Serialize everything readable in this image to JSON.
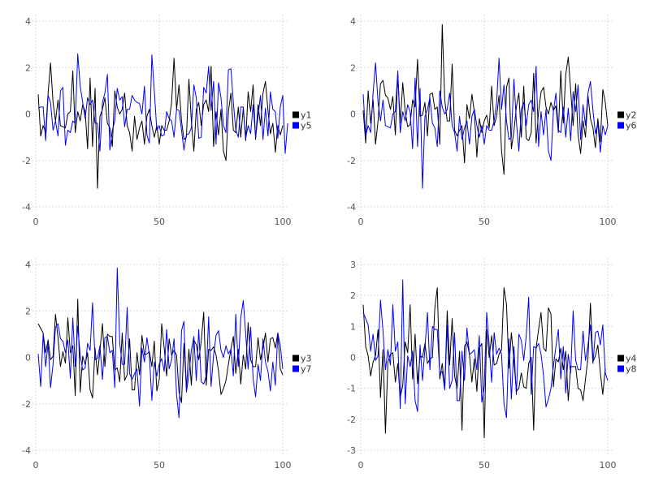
{
  "chart_data": [
    {
      "type": "line",
      "xlim": [
        0,
        100
      ],
      "ylim": [
        -4,
        4
      ],
      "xticks": [
        "0",
        "50",
        "100"
      ],
      "xtick_values": [
        0,
        50,
        100
      ],
      "yticks": [
        "-4",
        "-2",
        "0",
        "2",
        "4"
      ],
      "ytick_values": [
        -4,
        -2,
        0,
        2,
        4
      ],
      "grid": true,
      "legend": "right",
      "series": [
        {
          "name": "y1",
          "color": "#000000",
          "values": [
            0.85,
            -0.95,
            -0.5,
            -0.8,
            0.9,
            2.2,
            0.5,
            -0.3,
            0.6,
            -0.5,
            -0.55,
            -0.6,
            0,
            0.1,
            1.85,
            -0.8,
            0.1,
            -0.3,
            0.4,
            0.1,
            -1.5,
            1.55,
            -1.4,
            1.1,
            -3.2,
            -0.1,
            0.2,
            0.7,
            -0.4,
            -0.6,
            -1.4,
            1.0,
            0.3,
            0,
            0.2,
            0.9,
            -0.5,
            -0.8,
            -1.6,
            -0.1,
            -1.1,
            -0.6,
            -0.3,
            -1.3,
            -0.1,
            0.2,
            -0.5,
            -1.0,
            -0.5,
            -1.3,
            -0.5,
            -0.7,
            -0.7,
            -0.3,
            0.5,
            2.4,
            0.2,
            1.25,
            -0.3,
            -1.1,
            -1.0,
            1.5,
            -0.3,
            -1.6,
            0.2,
            0.5,
            -0.5,
            0.4,
            0.6,
            0.1,
            2.05,
            -1.4,
            0.1,
            -0.9,
            0.2,
            -1.6,
            -2.0,
            0.1,
            0.9,
            -0.7,
            -0.8,
            0.3,
            -1.0,
            0.25,
            -1.15,
            0.95,
            0.1,
            1.25,
            -1.1,
            0.4,
            -0.5,
            0.9,
            1.4,
            0.15,
            -0.85,
            -0.4,
            -1.65,
            -0.5,
            -0.9,
            -0.5
          ]
        },
        {
          "name": "y5",
          "color": "#0000ff",
          "values": [
            0.25,
            0.3,
            0.3,
            -1.15,
            0.8,
            0.5,
            -0.7,
            -0.3,
            -0.95,
            1.0,
            1.15,
            -1.35,
            -0.7,
            -0.8,
            -0.3,
            -0.4,
            2.6,
            1.2,
            0.5,
            -0.2,
            0.7,
            0.4,
            0.6,
            -0.4,
            -0.4,
            -1.6,
            0.5,
            0.9,
            1.7,
            -1.55,
            -0.7,
            -0.3,
            1.1,
            0.6,
            0.75,
            -0.55,
            0.2,
            0.2,
            0.8,
            0.6,
            0.5,
            0.45,
            0.0,
            1.2,
            -0.9,
            -1.25,
            2.55,
            1.0,
            -0.7,
            -0.5,
            -0.95,
            -0.9,
            0.1,
            -0.2,
            -0.3,
            -1.0,
            0.2,
            0.15,
            -0.7,
            -1.55,
            -0.9,
            -0.85,
            -0.6,
            1.25,
            0.7,
            -1.05,
            -1.0,
            1.15,
            0.9,
            2.05,
            0.15,
            1.4,
            -1.3,
            1.35,
            0.7,
            -0.5,
            -0.8,
            1.9,
            1.95,
            0.5,
            -0.7,
            -1.0,
            0.3,
            0.3,
            -1.05,
            -0.5,
            -0.85,
            0.4,
            -1.0,
            -0.1,
            0.8,
            -1.1,
            0.25,
            -0.95,
            0.95,
            0.2,
            0.1,
            -1.05,
            0.3,
            0.8,
            -1.7,
            -0.4
          ]
        }
      ]
    },
    {
      "type": "line",
      "xlim": [
        0,
        100
      ],
      "ylim": [
        -4,
        4
      ],
      "xticks": [
        "0",
        "50",
        "100"
      ],
      "xtick_values": [
        0,
        50,
        100
      ],
      "yticks": [
        "-4",
        "-2",
        "0",
        "2",
        "4"
      ],
      "ytick_values": [
        -4,
        -2,
        0,
        2,
        4
      ],
      "grid": true,
      "legend": "right",
      "series": [
        {
          "name": "y2",
          "color": "#000000",
          "values": [
            0.15,
            -1.25,
            1.0,
            -0.4,
            0.6,
            -1.3,
            -0.3,
            1.3,
            1.45,
            0.8,
            0.7,
            0.2,
            0.75,
            -0.9,
            1.7,
            -0.4,
            1.35,
            0.1,
            -0.55,
            -0.45,
            0.6,
            0.3,
            2.35,
            -0.1,
            -0.05,
            0.5,
            -0.95,
            0.85,
            0.9,
            0.2,
            0.3,
            -1.3,
            3.85,
            0.6,
            -0.3,
            -0.3,
            2.15,
            -0.7,
            -0.95,
            -0.7,
            -0.5,
            -2.1,
            0.4,
            -0.2,
            0.85,
            0.1,
            -1.85,
            -0.2,
            -0.8,
            -0.3,
            -0.05,
            -0.6,
            1.2,
            -0.5,
            -0.1,
            0.8,
            -1.6,
            -2.6,
            1.15,
            1.55,
            -1.5,
            -0.75,
            0.3,
            0.9,
            -1.0,
            1.2,
            -1.05,
            -1.15,
            -0.8,
            1.75,
            -1.25,
            0.1,
            0.95,
            1.15,
            0.3,
            0.0,
            0.5,
            0.15,
            0.35,
            -0.8,
            1.85,
            -0.4,
            1.7,
            2.45,
            1.0,
            -0.5,
            1.3,
            -0.9,
            -1.7,
            -0.3,
            -1.0,
            0.8,
            -0.2,
            -0.6,
            -1.45,
            -0.2,
            -1.2,
            1.05,
            0.5,
            -0.5
          ]
        },
        {
          "name": "y6",
          "color": "#0000ff",
          "values": [
            0.85,
            -0.95,
            -0.5,
            -0.8,
            0.9,
            2.2,
            0.5,
            -0.3,
            0.6,
            -0.5,
            -0.55,
            -0.6,
            0,
            0.1,
            1.85,
            -0.8,
            0.1,
            -0.3,
            0.4,
            0.1,
            -1.5,
            1.55,
            -1.4,
            1.1,
            -3.2,
            -0.1,
            0.2,
            0.7,
            -0.4,
            -0.6,
            -1.4,
            1.0,
            0.3,
            0,
            0.2,
            0.9,
            -0.5,
            -0.8,
            -1.6,
            -0.1,
            -1.1,
            -0.6,
            -0.3,
            -1.3,
            -0.1,
            0.2,
            -0.5,
            -1.0,
            -0.5,
            -1.3,
            -0.5,
            -0.7,
            -0.7,
            -0.3,
            0.5,
            2.4,
            0.2,
            1.25,
            -0.3,
            -1.1,
            -1.0,
            1.5,
            -0.3,
            -1.6,
            0.2,
            0.5,
            -0.5,
            0.4,
            0.6,
            0.1,
            2.05,
            -1.4,
            0.1,
            -0.9,
            0.2,
            -1.6,
            -2.0,
            0.1,
            0.9,
            -0.7,
            -0.8,
            0.3,
            -1.0,
            0.25,
            -1.15,
            0.95,
            0.1,
            1.25,
            -1.1,
            0.4,
            -0.5,
            0.9,
            1.4,
            0.15,
            -0.85,
            -0.4,
            -1.65,
            -0.5,
            -0.9,
            -0.5
          ]
        }
      ]
    },
    {
      "type": "line",
      "xlim": [
        0,
        100
      ],
      "ylim": [
        -4,
        4
      ],
      "xticks": [
        "0",
        "50",
        "100"
      ],
      "xtick_values": [
        0,
        50,
        100
      ],
      "yticks": [
        "-4",
        "-2",
        "0",
        "2",
        "4"
      ],
      "ytick_values": [
        -4,
        -2,
        0,
        2,
        4
      ],
      "grid": true,
      "legend": "right",
      "series": [
        {
          "name": "y3",
          "color": "#000000",
          "values": [
            1.45,
            1.25,
            1.05,
            0.2,
            0.75,
            -0.1,
            0.05,
            1.85,
            0.85,
            -0.4,
            0.25,
            -0.25,
            1.7,
            0.2,
            0.5,
            -1.65,
            2.5,
            -1.5,
            0.05,
            -0.3,
            0.2,
            -1.4,
            -1.75,
            0.4,
            -0.75,
            0.3,
            1.45,
            -0.4,
            1.0,
            0.9,
            0.9,
            -0.55,
            -0.45,
            -1.05,
            1.05,
            -1.0,
            -0.75,
            0.8,
            -1.4,
            -1.4,
            0.2,
            -0.75,
            0.95,
            0.1,
            0.15,
            0.25,
            -0.4,
            0.7,
            -1.45,
            -0.95,
            1.45,
            0.4,
            -0.8,
            0.8,
            0.1,
            0.3,
            0.1,
            -1.5,
            -1.95,
            0.6,
            -1.35,
            0.35,
            -1.2,
            0.75,
            0.55,
            -0.1,
            0.7,
            1.95,
            -1.2,
            0.35,
            0.3,
            0.45,
            0.1,
            -0.6,
            -1.6,
            -1.35,
            -1.0,
            -0.3,
            0.35,
            0.9,
            -0.7,
            0.35,
            -1.15,
            0.1,
            -0.5,
            1.5,
            -0.1,
            -0.4,
            -0.4,
            0.85,
            -0.1,
            0.4,
            1.05,
            -0.2,
            0.8,
            0.85,
            0.4,
            1.05,
            -0.5,
            -0.75
          ]
        },
        {
          "name": "y7",
          "color": "#0000ff",
          "values": [
            0.15,
            -1.25,
            1.0,
            -0.4,
            0.6,
            -1.3,
            -0.3,
            1.3,
            1.45,
            0.8,
            0.7,
            0.2,
            0.75,
            -0.9,
            1.7,
            -0.4,
            1.35,
            0.1,
            -0.55,
            -0.45,
            0.6,
            0.3,
            2.35,
            -0.1,
            -0.05,
            0.5,
            -0.95,
            0.85,
            0.9,
            0.2,
            0.3,
            -1.3,
            3.85,
            0.6,
            -0.3,
            -0.3,
            2.15,
            -0.7,
            -0.95,
            -0.7,
            -0.5,
            -2.1,
            0.4,
            -0.2,
            0.85,
            0.1,
            -1.85,
            -0.2,
            -0.8,
            -0.3,
            -0.05,
            -0.6,
            1.2,
            -0.5,
            -0.1,
            0.8,
            -1.6,
            -2.6,
            1.15,
            1.55,
            -1.5,
            -0.75,
            0.3,
            0.9,
            -1.0,
            1.2,
            -1.05,
            -1.15,
            -0.8,
            1.75,
            -1.25,
            0.1,
            0.95,
            1.15,
            0.3,
            0.0,
            0.5,
            0.15,
            0.35,
            -0.8,
            1.85,
            -0.4,
            1.7,
            2.45,
            1.0,
            -0.5,
            1.3,
            -0.9,
            -1.7,
            -0.3,
            -1.0,
            0.8,
            -0.2,
            -0.6,
            -1.45,
            -0.2,
            -1.2,
            1.05,
            0.5,
            -0.5
          ]
        }
      ]
    },
    {
      "type": "line",
      "xlim": [
        0,
        100
      ],
      "ylim": [
        -3,
        3
      ],
      "xticks": [
        "0",
        "50",
        "100"
      ],
      "xtick_values": [
        0,
        50,
        100
      ],
      "yticks": [
        "-3",
        "-2",
        "-1",
        "0",
        "1",
        "2",
        "3"
      ],
      "ytick_values": [
        -3,
        -2,
        -1,
        0,
        1,
        2,
        3
      ],
      "grid": true,
      "legend": "right",
      "series": [
        {
          "name": "y4",
          "color": "#000000",
          "values": [
            1.7,
            0.35,
            0.05,
            -0.6,
            -0.15,
            0.05,
            0.9,
            -1.3,
            0.25,
            -2.45,
            -0.15,
            0.1,
            0.15,
            -0.8,
            -0.2,
            -1.3,
            -0.9,
            0.5,
            0.15,
            1.7,
            -0.7,
            0.75,
            -0.85,
            0.05,
            0.0,
            0.45,
            -0.2,
            -0.05,
            0.0,
            1.6,
            2.25,
            -0.7,
            -0.2,
            -1.0,
            1.5,
            -0.25,
            1.25,
            -0.6,
            -1.0,
            0.2,
            -2.35,
            0.35,
            0.5,
            0.1,
            -0.8,
            -0.05,
            -1.1,
            0.3,
            0.45,
            -2.6,
            0.9,
            0.0,
            0.7,
            -0.25,
            -0.2,
            0.1,
            0.25,
            2.25,
            1.7,
            -0.35,
            0.8,
            -0.1,
            -1.1,
            -1.0,
            -0.5,
            -0.95,
            -1.0,
            -0.2,
            0.0,
            -2.35,
            0.3,
            0.9,
            1.45,
            0.3,
            0.2,
            1.6,
            1.4,
            -0.95,
            -0.05,
            -0.15,
            0.3,
            -0.4,
            0.2,
            -1.4,
            -0.3,
            -0.3,
            -0.3,
            -1.0,
            -1.05,
            -1.4,
            -0.7,
            0.0,
            1.75,
            -0.15,
            0.05,
            0.4,
            -0.5,
            -1.2,
            -0.35
          ]
        },
        {
          "name": "y8",
          "color": "#0000ff",
          "values": [
            1.45,
            1.25,
            1.05,
            0.2,
            0.75,
            -0.1,
            0.05,
            1.85,
            0.85,
            -0.4,
            0.25,
            -0.25,
            1.7,
            0.2,
            0.5,
            -1.65,
            2.5,
            -1.5,
            0.05,
            -0.3,
            0.2,
            -1.4,
            -1.75,
            0.4,
            -0.75,
            0.3,
            1.45,
            -0.4,
            1.0,
            0.9,
            0.9,
            -0.55,
            -0.45,
            -1.05,
            1.05,
            -1.0,
            -0.75,
            0.8,
            -1.4,
            -1.4,
            0.2,
            -0.75,
            0.95,
            0.1,
            0.15,
            0.25,
            -0.4,
            0.7,
            -1.45,
            -0.95,
            1.45,
            0.4,
            -0.8,
            0.8,
            0.1,
            0.3,
            0.1,
            -1.5,
            -1.95,
            0.6,
            -1.35,
            0.35,
            -1.2,
            0.75,
            0.55,
            -0.1,
            0.7,
            1.95,
            -1.2,
            0.35,
            0.3,
            0.45,
            0.1,
            -0.6,
            -1.6,
            -1.35,
            -1.0,
            -0.3,
            0.35,
            0.9,
            -0.7,
            0.35,
            -1.15,
            0.1,
            -0.5,
            1.5,
            -0.1,
            -0.4,
            -0.4,
            0.85,
            -0.1,
            0.4,
            1.05,
            -0.2,
            0.8,
            0.85,
            0.4,
            1.05,
            -0.5,
            -0.75
          ]
        }
      ]
    }
  ]
}
